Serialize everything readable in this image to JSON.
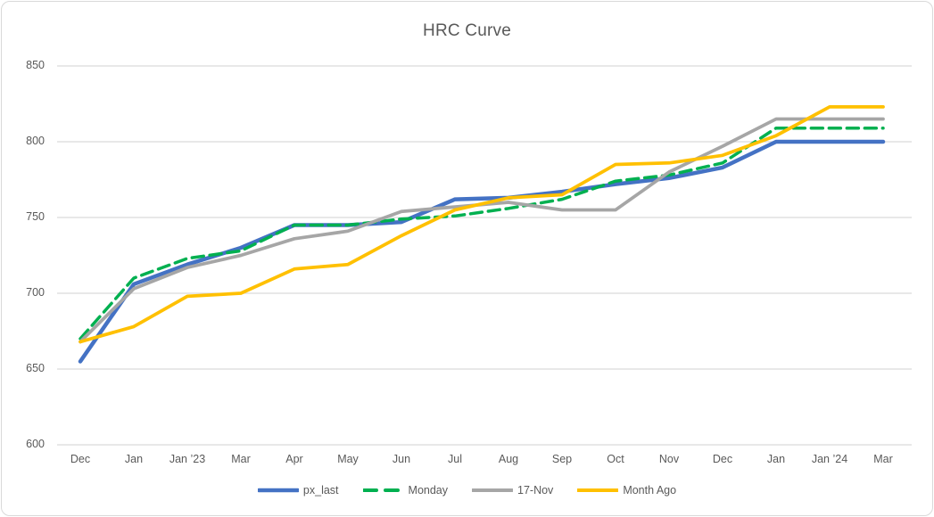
{
  "window": {
    "background": "#ffffff",
    "border_color": "#d9d9d9",
    "text_color": "#595959"
  },
  "chart_data": {
    "type": "line",
    "title": "HRC Curve",
    "categories": [
      "Dec",
      "Jan",
      "Jan ’23",
      "Mar",
      "Apr",
      "May",
      "Jun",
      "Jul",
      "Aug",
      "Sep",
      "Oct",
      "Nov",
      "Dec",
      "Jan",
      "Jan ’24",
      "Mar"
    ],
    "series": [
      {
        "name": "px_last",
        "color": "#4472c4",
        "dash": "solid",
        "width": 4.5,
        "values": [
          655,
          706,
          719,
          730,
          745,
          745,
          747,
          762,
          763,
          767,
          772,
          776,
          783,
          800,
          800,
          800
        ]
      },
      {
        "name": "Monday",
        "color": "#00b050",
        "dash": "dashed",
        "width": 3.5,
        "values": [
          670,
          710,
          723,
          728,
          745,
          745,
          749,
          751,
          756,
          762,
          774,
          778,
          786,
          809,
          809,
          809
        ]
      },
      {
        "name": "17-Nov",
        "color": "#a6a6a6",
        "dash": "solid",
        "width": 3.75,
        "values": [
          668,
          703,
          717,
          725,
          736,
          741,
          754,
          757,
          760,
          755,
          755,
          780,
          797,
          815,
          815,
          815
        ]
      },
      {
        "name": "Month Ago",
        "color": "#ffc000",
        "dash": "solid",
        "width": 3.75,
        "values": [
          668,
          678,
          698,
          700,
          716,
          719,
          738,
          755,
          763,
          765,
          785,
          786,
          791,
          804,
          823,
          823
        ]
      }
    ],
    "y_ticks": [
      600,
      650,
      700,
      750,
      800,
      850
    ],
    "ylim": [
      600,
      850
    ],
    "grid": true,
    "gridline_color": "#d9d9d9",
    "legend_position": "bottom"
  }
}
